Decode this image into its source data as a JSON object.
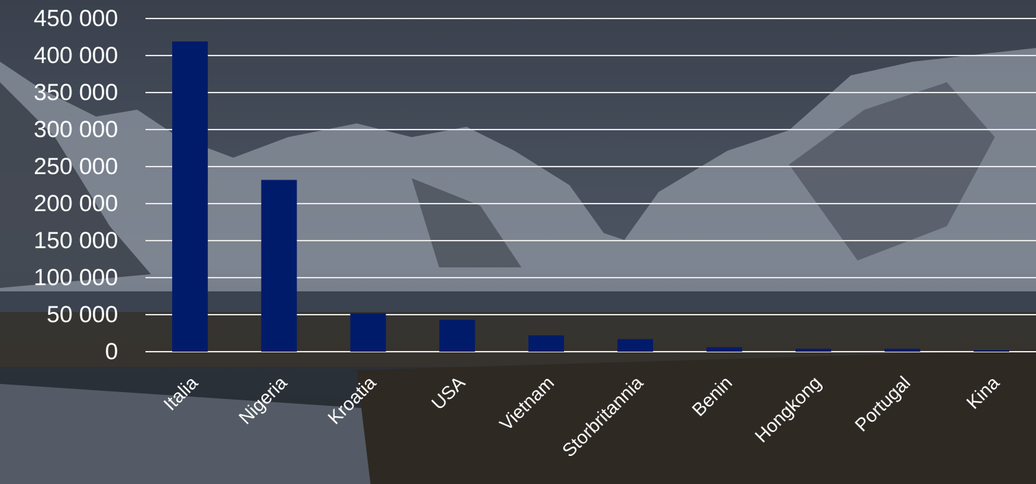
{
  "chart_data": {
    "type": "bar",
    "categories": [
      "Italia",
      "Nigeria",
      "Kroatia",
      "USA",
      "Vietnam",
      "Storbritannia",
      "Benin",
      "Hongkong",
      "Portugal",
      "Kina"
    ],
    "values": [
      419000,
      232000,
      52000,
      43000,
      22000,
      17000,
      6000,
      4000,
      4000,
      2000
    ],
    "color": "#011b6b",
    "ylim": [
      0,
      450000
    ],
    "yticks": [
      0,
      {
        "value": 50000,
        "label": "50 000"
      },
      {
        "value": 100000,
        "label": "100 000"
      },
      {
        "value": 150000,
        "label": "150 000"
      },
      {
        "value": 200000,
        "label": "200 000"
      },
      {
        "value": 250000,
        "label": "250 000"
      },
      {
        "value": 300000,
        "label": "300 000"
      },
      {
        "value": 350000,
        "label": "350 000"
      },
      {
        "value": 400000,
        "label": "400 000"
      },
      {
        "value": 450000,
        "label": "450 000"
      }
    ],
    "grid": true
  }
}
